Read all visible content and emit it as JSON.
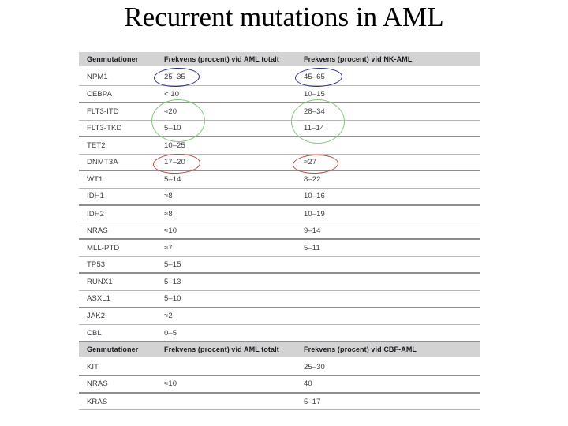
{
  "slide": {
    "title": "Recurrent mutations in AML"
  },
  "table": {
    "sections": [
      {
        "header": [
          "Genmutationer",
          "Frekvens (procent) vid AML totalt",
          "Frekvens (procent) vid NK-AML"
        ],
        "rows": [
          {
            "gene": "NPM1",
            "aml_total": "25–35",
            "subtype": "45–65"
          },
          {
            "gene": "CEBPA",
            "aml_total": "< 10",
            "subtype": "10–15"
          },
          {
            "gene": "FLT3-ITD",
            "aml_total": "≈20",
            "subtype": "28–34"
          },
          {
            "gene": "FLT3-TKD",
            "aml_total": "5–10",
            "subtype": "11–14"
          },
          {
            "gene": "TET2",
            "aml_total": "10–25",
            "subtype": ""
          },
          {
            "gene": "DNMT3A",
            "aml_total": "17–20",
            "subtype": "≈27"
          },
          {
            "gene": "WT1",
            "aml_total": "5–14",
            "subtype": "8–22"
          },
          {
            "gene": "IDH1",
            "aml_total": "≈8",
            "subtype": "10–16"
          },
          {
            "gene": "IDH2",
            "aml_total": "≈8",
            "subtype": "10–19"
          },
          {
            "gene": "NRAS",
            "aml_total": "≈10",
            "subtype": "9–14"
          },
          {
            "gene": "MLL-PTD",
            "aml_total": "≈7",
            "subtype": "5–11"
          },
          {
            "gene": "TP53",
            "aml_total": "5–15",
            "subtype": ""
          },
          {
            "gene": "RUNX1",
            "aml_total": "5–13",
            "subtype": ""
          },
          {
            "gene": "ASXL1",
            "aml_total": "5–10",
            "subtype": ""
          },
          {
            "gene": "JAK2",
            "aml_total": "≈2",
            "subtype": ""
          },
          {
            "gene": "CBL",
            "aml_total": "0–5",
            "subtype": ""
          }
        ]
      },
      {
        "header": [
          "Genmutationer",
          "Frekvens (procent) vid AML totalt",
          "Frekvens (procent) vid CBF-AML"
        ],
        "rows": [
          {
            "gene": "KIT",
            "aml_total": "",
            "subtype": "25–30"
          },
          {
            "gene": "NRAS",
            "aml_total": "≈10",
            "subtype": "40"
          },
          {
            "gene": "KRAS",
            "aml_total": "",
            "subtype": "5–17"
          }
        ]
      }
    ]
  },
  "annotations": {
    "circle_colors": {
      "blue": "#2e3192",
      "green": "#84c87f",
      "red": "#bf4a4a"
    },
    "circles": [
      {
        "id": "npm1-aml-total",
        "color": "blue",
        "around": "25–35"
      },
      {
        "id": "npm1-nk-aml",
        "color": "blue",
        "around": "45–65"
      },
      {
        "id": "flt3-aml-total",
        "color": "green",
        "around": "≈20 / 5–10"
      },
      {
        "id": "flt3-nk-aml",
        "color": "green",
        "around": "28–34 / 11–14"
      },
      {
        "id": "dnmt3a-aml-total",
        "color": "red",
        "around": "17–20"
      },
      {
        "id": "dnmt3a-nk-aml",
        "color": "red",
        "around": "≈27"
      }
    ]
  }
}
